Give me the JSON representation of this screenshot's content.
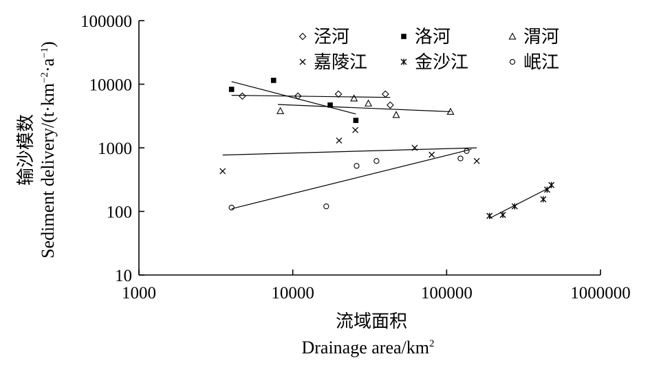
{
  "chart_data": {
    "type": "scatter",
    "x_scale": "log",
    "y_scale": "log",
    "xlim": [
      1000,
      1000000
    ],
    "ylim": [
      10,
      100000
    ],
    "x_ticks": [
      "1000",
      "10000",
      "100000",
      "1000000"
    ],
    "y_ticks": [
      "10",
      "100",
      "1000",
      "10000",
      "100000"
    ],
    "xlabel_cn": "流域面积",
    "xlabel_en": "Drainage area/km",
    "xlabel_en_sup": "2",
    "ylabel_cn": "输沙模数",
    "ylabel_en_main": "Sediment delivery/(t·km",
    "ylabel_en_sup1": "−2",
    "ylabel_en_mid": "·a",
    "ylabel_en_sup2": "−1",
    "ylabel_en_end": ")",
    "grid": false,
    "legend_position": "top-center",
    "series": [
      {
        "name": "泾河",
        "marker": "diamond",
        "points": [
          [
            4700,
            6500
          ],
          [
            10800,
            6500
          ],
          [
            19800,
            7000
          ],
          [
            40000,
            7000
          ],
          [
            43000,
            4700
          ]
        ],
        "trend": [
          [
            4000,
            6700
          ],
          [
            43000,
            6200
          ]
        ]
      },
      {
        "name": "洛河",
        "marker": "square-filled",
        "points": [
          [
            4000,
            8300
          ],
          [
            7500,
            11500
          ],
          [
            17500,
            4700
          ],
          [
            25700,
            2700
          ]
        ],
        "trend": [
          [
            4000,
            11000
          ],
          [
            25700,
            3400
          ]
        ]
      },
      {
        "name": "渭河",
        "marker": "triangle",
        "points": [
          [
            8300,
            3800
          ],
          [
            25000,
            6000
          ],
          [
            31000,
            5000
          ],
          [
            47000,
            3300
          ],
          [
            106000,
            3700
          ]
        ],
        "trend": [
          [
            8000,
            4800
          ],
          [
            106000,
            3700
          ]
        ]
      },
      {
        "name": "嘉陵江",
        "marker": "x",
        "points": [
          [
            3500,
            430
          ],
          [
            20000,
            1300
          ],
          [
            25500,
            1900
          ],
          [
            62000,
            1000
          ],
          [
            80000,
            780
          ],
          [
            157000,
            620
          ]
        ],
        "trend": [
          [
            3500,
            770
          ],
          [
            157000,
            1000
          ]
        ]
      },
      {
        "name": "金沙江",
        "marker": "asterisk",
        "points": [
          [
            190000,
            85
          ],
          [
            232000,
            88
          ],
          [
            277000,
            120
          ],
          [
            425000,
            155
          ],
          [
            450000,
            220
          ],
          [
            480000,
            260
          ]
        ],
        "trend": [
          [
            190000,
            78
          ],
          [
            480000,
            245
          ]
        ]
      },
      {
        "name": "岷江",
        "marker": "circle",
        "points": [
          [
            4000,
            115
          ],
          [
            16500,
            120
          ],
          [
            26000,
            520
          ],
          [
            35000,
            620
          ],
          [
            123000,
            680
          ],
          [
            135000,
            890
          ]
        ],
        "trend": [
          [
            4000,
            110
          ],
          [
            145000,
            950
          ]
        ]
      }
    ]
  }
}
